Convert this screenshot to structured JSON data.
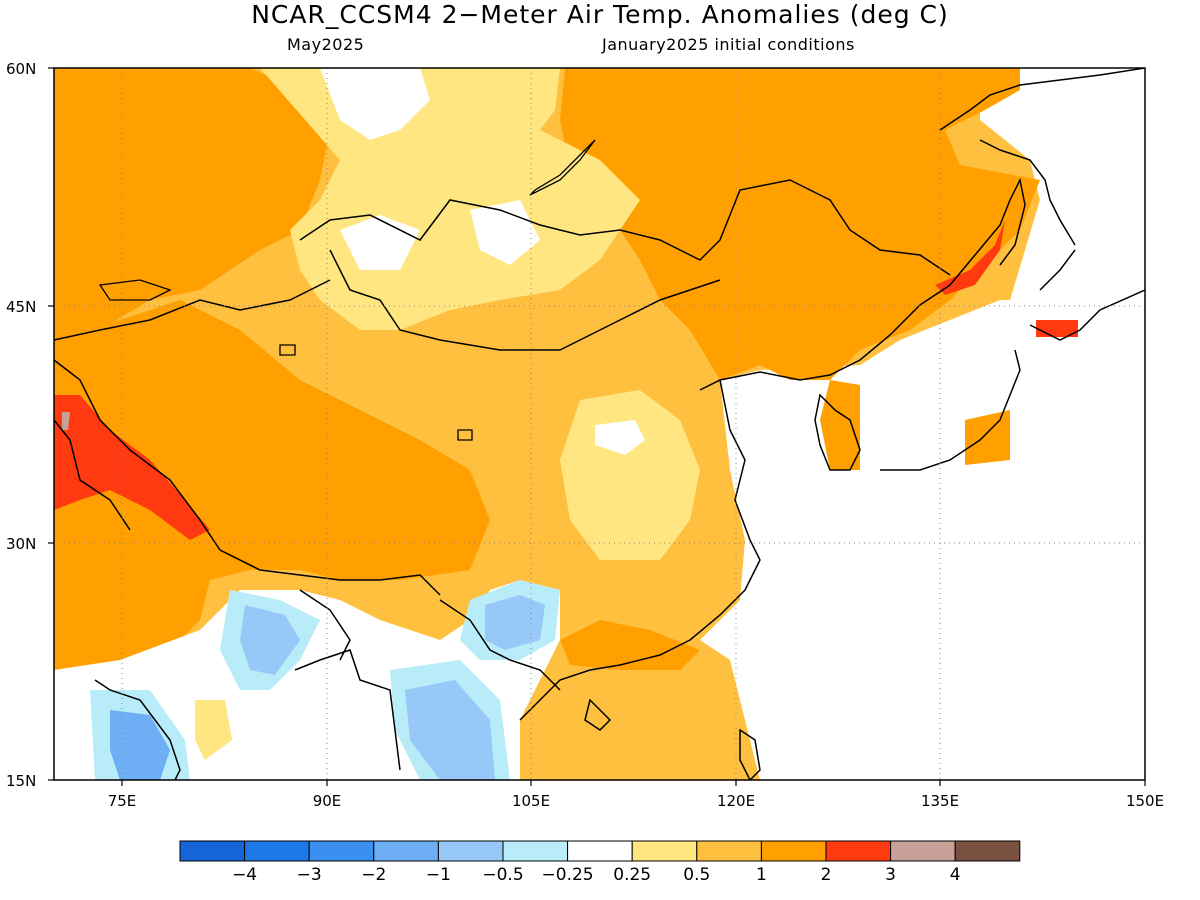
{
  "title": "NCAR_CCSM4 2−Meter Air Temp. Anomalies (deg C)",
  "subtitle_left": "May2025",
  "subtitle_right": "January2025 initial conditions",
  "map": {
    "lat_labels": [
      "60N",
      "45N",
      "30N",
      "15N"
    ],
    "lon_labels": [
      "75E",
      "90E",
      "105E",
      "120E",
      "135E",
      "150E"
    ]
  },
  "colorbar": {
    "labels": [
      "−4",
      "−3",
      "−2",
      "−1",
      "−0.5",
      "−0.25",
      "0.25",
      "0.5",
      "1",
      "2",
      "3",
      "4"
    ],
    "colors": [
      "#1565d8",
      "#1f78e8",
      "#3a8ff0",
      "#6eaef4",
      "#97c8f8",
      "#b7ecf8",
      "#ffffff",
      "#ffe680",
      "#ffc040",
      "#ffa000",
      "#ff3a10",
      "#c8a098",
      "#7a5040"
    ]
  }
}
